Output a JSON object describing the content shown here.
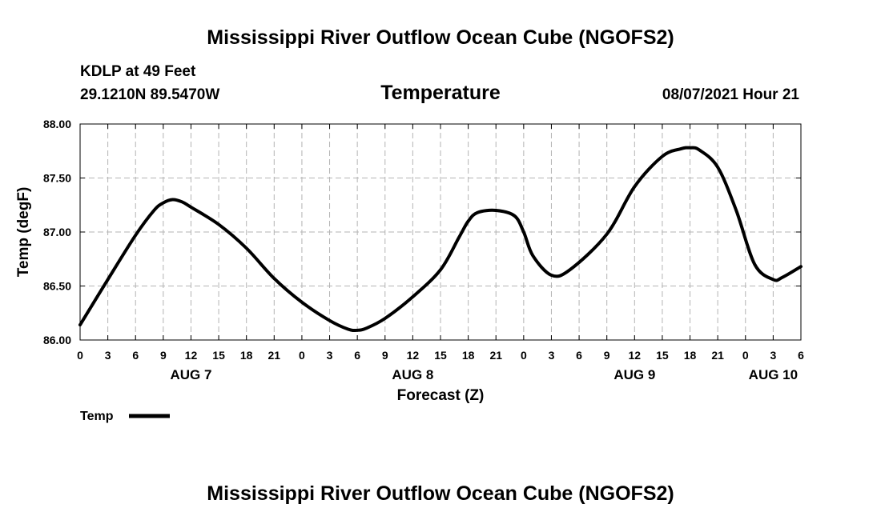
{
  "chart_data": {
    "type": "line",
    "title": "Mississippi River Outflow Ocean Cube (NGOFS2)",
    "footer_title": "Mississippi River Outflow Ocean Cube (NGOFS2)",
    "station": "KDLP at 49 Feet",
    "location": "29.1210N  89.5470W",
    "subtitle": "Temperature",
    "datetime": "08/07/2021 Hour 21",
    "xlabel": "Forecast (Z)",
    "ylabel": "Temp (degF)",
    "ylim": [
      86.0,
      88.0
    ],
    "xlim": [
      0,
      78
    ],
    "y_ticks": [
      86.0,
      86.5,
      87.0,
      87.5,
      88.0
    ],
    "y_tick_labels": [
      "86.00",
      "86.50",
      "87.00",
      "87.50",
      "88.00"
    ],
    "x_ticks": [
      0,
      3,
      6,
      9,
      12,
      15,
      18,
      21,
      24,
      27,
      30,
      33,
      36,
      39,
      42,
      45,
      48,
      51,
      54,
      57,
      60,
      63,
      66,
      69,
      72,
      75,
      78
    ],
    "x_tick_labels": [
      "0",
      "3",
      "6",
      "9",
      "12",
      "15",
      "18",
      "21",
      "0",
      "3",
      "6",
      "9",
      "12",
      "15",
      "18",
      "21",
      "0",
      "3",
      "6",
      "9",
      "12",
      "15",
      "18",
      "21",
      "0",
      "3",
      "6"
    ],
    "day_labels": [
      {
        "label": "AUG 7",
        "at": 12
      },
      {
        "label": "AUG 8",
        "at": 36
      },
      {
        "label": "AUG 9",
        "at": 60
      },
      {
        "label": "AUG 10",
        "at": 75
      }
    ],
    "grid": true,
    "legend_position": "bottom-left",
    "series": [
      {
        "name": "Temp",
        "color": "#000000",
        "x": [
          0,
          3,
          6,
          8,
          9,
          10,
          11,
          12,
          15,
          18,
          21,
          24,
          27,
          29,
          30,
          31,
          33,
          36,
          39,
          41,
          42,
          43,
          45,
          47,
          48,
          49,
          51,
          53,
          57,
          60,
          63,
          65,
          66,
          67,
          69,
          71,
          73,
          75,
          76,
          78
        ],
        "values": [
          86.14,
          86.56,
          86.97,
          87.2,
          87.27,
          87.3,
          87.28,
          87.23,
          87.07,
          86.85,
          86.57,
          86.35,
          86.18,
          86.1,
          86.09,
          86.11,
          86.2,
          86.4,
          86.65,
          86.95,
          87.1,
          87.18,
          87.2,
          87.15,
          87.0,
          86.78,
          86.6,
          86.65,
          86.98,
          87.42,
          87.7,
          87.77,
          87.78,
          87.76,
          87.6,
          87.2,
          86.7,
          86.56,
          86.58,
          86.68
        ]
      }
    ],
    "legend": [
      {
        "label": "Temp",
        "color": "#000000"
      }
    ]
  }
}
